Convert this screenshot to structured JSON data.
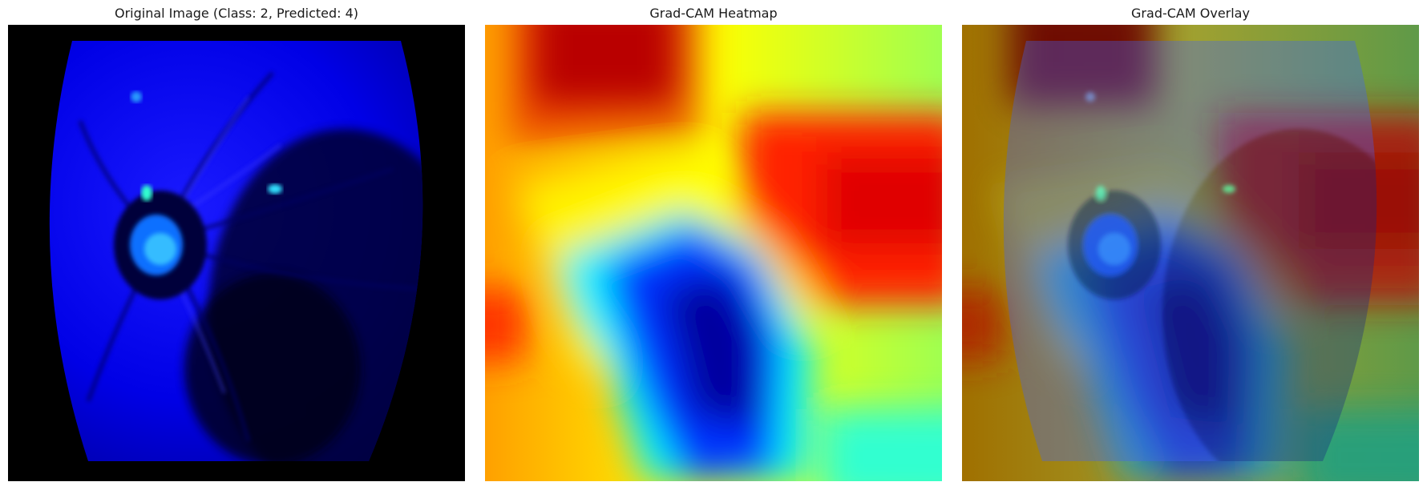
{
  "panels": [
    {
      "title": "Original Image (Class: 2, Predicted: 4)"
    },
    {
      "title": "Grad-CAM Heatmap"
    },
    {
      "title": "Grad-CAM Overlay"
    }
  ],
  "colors": {
    "background": "#ffffff",
    "fundus_base": "#0000ff",
    "heat_hot": "#800000",
    "heat_cold": "#00007f"
  }
}
